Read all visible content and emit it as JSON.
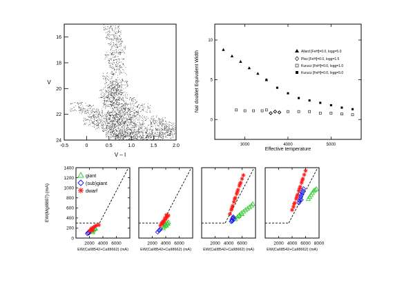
{
  "chart_data": [
    {
      "id": "cmd",
      "type": "scatter",
      "title": "",
      "xlabel": "V – I",
      "ylabel": "V",
      "xlim": [
        -0.5,
        2.0
      ],
      "ylim": [
        24,
        15
      ],
      "y_inverted": true,
      "xticks": [
        -0.5,
        0,
        0.5,
        1.0,
        1.5,
        2.0
      ],
      "xtick_labels": [
        "-0.5",
        "0",
        "0.5",
        "1.0",
        "1.5",
        "2.0"
      ],
      "yticks": [
        16,
        18,
        20,
        22,
        24
      ],
      "ytick_labels": [
        "16",
        "18",
        "20",
        "22",
        "24"
      ],
      "series": [
        {
          "color": "#000000",
          "marker": "dot",
          "x": [
            0.55,
            0.6,
            0.62,
            0.7,
            0.58,
            0.66,
            0.72,
            0.52,
            0.75,
            0.65,
            0.6,
            0.56,
            0.7,
            0.8,
            0.62,
            0.68,
            0.74,
            0.58,
            0.85,
            0.95,
            1.1,
            1.3,
            0.9,
            1.0,
            1.2,
            1.5,
            1.7,
            0.8,
            0.7,
            0.6,
            0.5,
            0.3,
            0.1,
            0.9,
            1.05,
            1.4,
            1.6,
            1.8,
            0.4,
            0.2,
            0.0,
            -0.2,
            1.25,
            0.95,
            0.75,
            0.65,
            0.55,
            0.45,
            1.15,
            1.35,
            1.55,
            1.75,
            1.9,
            0.85,
            0.78,
            0.66,
            0.59,
            0.53
          ],
          "y": [
            15.3,
            15.8,
            16.4,
            17.0,
            17.5,
            18.0,
            18.6,
            19.1,
            19.6,
            20.0,
            20.5,
            21.0,
            21.3,
            21.7,
            22.0,
            22.3,
            22.6,
            22.8,
            22.5,
            22.7,
            22.9,
            23.1,
            23.3,
            23.5,
            23.6,
            23.4,
            23.2,
            23.8,
            23.6,
            23.4,
            23.0,
            22.8,
            22.5,
            21.8,
            22.1,
            22.4,
            22.6,
            22.9,
            22.2,
            21.9,
            21.6,
            21.4,
            21.5,
            21.0,
            20.6,
            20.2,
            19.8,
            20.4,
            23.7,
            23.9,
            23.8,
            23.5,
            23.3,
            23.9,
            23.95,
            23.2,
            22.1,
            21.2
          ]
        }
      ]
    },
    {
      "id": "nai",
      "type": "scatter",
      "title": "",
      "xlabel": "Effective temperature",
      "ylabel": "NaI doublet Equivalent Width",
      "xlim": [
        2300,
        5700
      ],
      "ylim": [
        -2.5,
        12
      ],
      "xticks": [
        3000,
        4000,
        5000
      ],
      "xtick_labels": [
        "3000",
        "4000",
        "5000"
      ],
      "yticks": [
        0,
        5,
        10
      ],
      "ytick_labels": [
        "0",
        "5",
        "10"
      ],
      "legend_position": "right",
      "series": [
        {
          "name": "Allard [FeH]=0.0, logg=5.0",
          "color": "#000000",
          "marker": "triangle",
          "x": [
            2500,
            2700,
            2900,
            3100,
            3300,
            3500
          ],
          "y": [
            8.8,
            8.0,
            7.3,
            6.5,
            5.8,
            5.0
          ]
        },
        {
          "name": "Plez [FeH]=0.0, logg=1.5",
          "color": "#000000",
          "marker": "open-diamond",
          "x": [
            3600,
            3700,
            3800
          ],
          "y": [
            0.8,
            1.0,
            0.9
          ]
        },
        {
          "name": "Kurucz [FeH]=0.0, logg=1.0",
          "color": "#000000",
          "marker": "open-square",
          "x": [
            2800,
            3000,
            3200,
            3400,
            3500,
            4000,
            4250,
            4500,
            4750,
            5000,
            5250,
            5500
          ],
          "y": [
            1.2,
            1.1,
            1.1,
            1.1,
            1.2,
            1.0,
            1.0,
            1.0,
            0.8,
            0.8,
            0.7,
            0.6
          ]
        },
        {
          "name": "Kurucz [FeH]=0.0, logg=5.0",
          "color": "#000000",
          "marker": "filled-square",
          "x": [
            3500,
            3750,
            4000,
            4250,
            4500,
            4750,
            5000,
            5250,
            5500
          ],
          "y": [
            5.0,
            4.0,
            3.3,
            2.7,
            2.4,
            2.1,
            1.8,
            1.5,
            1.3
          ]
        }
      ]
    },
    {
      "id": "ew1",
      "type": "scatter",
      "xlabel": "EW(CaII8542+CaII8662) (mA)",
      "ylabel": "EW(MgI8807) (mA)",
      "xlim": [
        0,
        8000
      ],
      "ylim": [
        0,
        1400
      ],
      "xticks": [
        2000,
        4000,
        6000
      ],
      "xtick_labels": [
        "2000",
        "4000",
        "6000"
      ],
      "yticks": [
        0,
        200,
        400,
        600,
        800,
        1000,
        1200,
        1400
      ],
      "ytick_labels": [
        "0",
        "200",
        "400",
        "600",
        "800",
        "1000",
        "1200",
        "1400"
      ],
      "legend_position": "top-left",
      "reference_lines": {
        "horizontal_y": 300,
        "horizontal_x_end": 3500,
        "diagonal": [
          [
            3500,
            300
          ],
          [
            8000,
            1450
          ]
        ]
      },
      "series": [
        {
          "name": "giant",
          "color": "#33cc33",
          "marker": "open-triangle",
          "x": [
            2400,
            2600,
            2700,
            2800,
            2900,
            2500
          ],
          "y": [
            140,
            160,
            180,
            200,
            190,
            120
          ]
        },
        {
          "name": "(sub)giant",
          "color": "#1a1aee",
          "marker": "open-diamond",
          "x": [
            1700,
            1800,
            1900,
            2000
          ],
          "y": [
            90,
            110,
            100,
            130
          ]
        },
        {
          "name": "dwarf",
          "color": "#ff1a1a",
          "marker": "asterisk",
          "x": [
            2000,
            2200,
            2400,
            2600,
            2800,
            3000,
            3400,
            2300,
            2500
          ],
          "y": [
            140,
            170,
            200,
            210,
            230,
            250,
            260,
            180,
            150
          ]
        }
      ]
    },
    {
      "id": "ew2",
      "type": "scatter",
      "xlabel": "EW(CaII8542+CaII8662) (mA)",
      "ylabel": "",
      "xlim": [
        0,
        8000
      ],
      "ylim": [
        0,
        1400
      ],
      "xticks": [
        2000,
        4000,
        6000
      ],
      "xtick_labels": [
        "2000",
        "4000",
        "6000"
      ],
      "reference_lines": {
        "horizontal_y": 300,
        "horizontal_x_end": 3500,
        "diagonal": [
          [
            3500,
            300
          ],
          [
            8000,
            1450
          ]
        ]
      },
      "series": [
        {
          "color": "#33cc33",
          "marker": "open-triangle",
          "x": [
            3600,
            3800,
            4000,
            4200,
            4400,
            3900,
            4100,
            4300
          ],
          "y": [
            200,
            230,
            260,
            300,
            320,
            280,
            250,
            290
          ]
        },
        {
          "color": "#1a1aee",
          "marker": "open-diamond",
          "x": [
            2800,
            3000,
            3100,
            3200
          ],
          "y": [
            120,
            150,
            160,
            180
          ]
        },
        {
          "color": "#ff1a1a",
          "marker": "asterisk",
          "x": [
            3200,
            3400,
            3600,
            3800,
            4000,
            4200,
            4400,
            3500,
            3700,
            3900,
            4100
          ],
          "y": [
            250,
            300,
            330,
            360,
            380,
            420,
            450,
            280,
            320,
            400,
            460
          ]
        }
      ]
    },
    {
      "id": "ew3",
      "type": "scatter",
      "xlabel": "EW(CaII8542+CaII8662) (mA)",
      "ylabel": "",
      "xlim": [
        0,
        8000
      ],
      "ylim": [
        0,
        1400
      ],
      "xticks": [
        2000,
        4000,
        6000
      ],
      "xtick_labels": [
        "2000",
        "4000",
        "6000"
      ],
      "reference_lines": {
        "horizontal_y": 300,
        "horizontal_x_end": 3500,
        "diagonal": [
          [
            3500,
            300
          ],
          [
            8000,
            1450
          ]
        ]
      },
      "series": [
        {
          "color": "#33cc33",
          "marker": "open-triangle",
          "x": [
            5000,
            5300,
            5600,
            5900,
            6200,
            6500,
            6800,
            7100,
            7400,
            7600,
            5500,
            6000
          ],
          "y": [
            380,
            420,
            460,
            500,
            530,
            560,
            590,
            620,
            650,
            680,
            440,
            480
          ]
        },
        {
          "color": "#1a1aee",
          "marker": "open-diamond",
          "x": [
            4400,
            4500,
            4600,
            4700,
            4800,
            4550,
            4650
          ],
          "y": [
            330,
            360,
            390,
            420,
            380,
            340,
            400
          ]
        },
        {
          "color": "#ff1a1a",
          "marker": "asterisk",
          "x": [
            4200,
            4400,
            4600,
            4800,
            5000,
            5200,
            5400,
            5600,
            5800,
            6000,
            6200,
            4500,
            4900,
            5300,
            5700
          ],
          "y": [
            480,
            560,
            640,
            720,
            800,
            880,
            960,
            1040,
            1100,
            1180,
            1250,
            600,
            780,
            920,
            1080
          ]
        }
      ]
    },
    {
      "id": "ew4",
      "type": "scatter",
      "xlabel": "EW(CaII8542+CaII8662) (mA)",
      "ylabel": "",
      "xlim": [
        0,
        8000
      ],
      "ylim": [
        0,
        1400
      ],
      "xticks": [
        2000,
        4000,
        6000,
        8000
      ],
      "xtick_labels": [
        "2000",
        "4000",
        "6000",
        "8000"
      ],
      "reference_lines": {
        "horizontal_y": 300,
        "horizontal_x_end": 3500,
        "diagonal": [
          [
            3500,
            300
          ],
          [
            8000,
            1450
          ]
        ]
      },
      "series": [
        {
          "color": "#33cc33",
          "marker": "open-triangle",
          "x": [
            6400,
            6600,
            6800,
            7000,
            7200,
            7400,
            7600
          ],
          "y": [
            780,
            820,
            860,
            900,
            940,
            960,
            980
          ]
        },
        {
          "color": "#1a1aee",
          "marker": "open-diamond",
          "x": [
            5000,
            5100,
            5200,
            5300,
            5400,
            5500,
            5600,
            5700,
            5150,
            5350
          ],
          "y": [
            700,
            740,
            780,
            820,
            860,
            900,
            940,
            980,
            880,
            760
          ]
        },
        {
          "color": "#ff1a1a",
          "marker": "asterisk",
          "x": [
            4000,
            4200,
            4400,
            4600,
            4800,
            5000,
            5200,
            5400,
            5600,
            5800,
            6000,
            4300,
            4700,
            5100,
            5500
          ],
          "y": [
            560,
            620,
            700,
            780,
            860,
            940,
            1020,
            1100,
            1180,
            1260,
            1340,
            680,
            820,
            980,
            1150
          ]
        }
      ]
    }
  ],
  "legend_text": {
    "nai": [
      "Allard [FeH]=0.0, logg=5.0",
      "Plez [FeH]=0.0, logg=1.5",
      "Kurucz [FeH]=0.0, logg=1.0",
      "Kurucz [FeH]=0.0, logg=5.0"
    ],
    "ew1": [
      "giant",
      "(sub)giant",
      "dwarf"
    ]
  }
}
